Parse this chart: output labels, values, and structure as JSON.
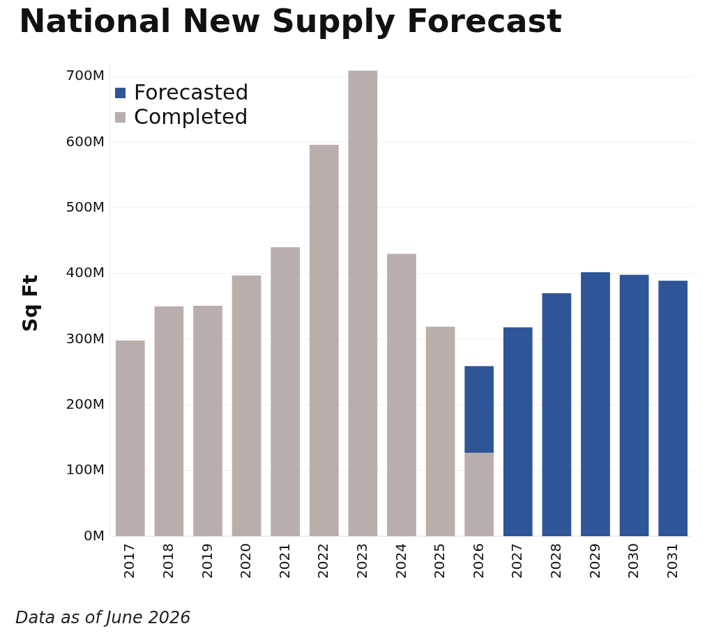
{
  "chart_data": {
    "type": "bar",
    "title": "National New Supply Forecast",
    "ylabel": "Sq Ft",
    "categories": [
      "2017",
      "2018",
      "2019",
      "2020",
      "2021",
      "2022",
      "2023",
      "2024",
      "2025",
      "2026",
      "2027",
      "2028",
      "2029",
      "2030",
      "2031"
    ],
    "series": [
      {
        "name": "Completed",
        "color": "#b8afac",
        "values": [
          298,
          350,
          351,
          397,
          440,
          596,
          709,
          430,
          319,
          127,
          null,
          null,
          null,
          null,
          null
        ]
      },
      {
        "name": "Forecasted",
        "color": "#2e5597",
        "values": [
          null,
          null,
          null,
          null,
          null,
          null,
          null,
          null,
          null,
          132,
          318,
          370,
          402,
          398,
          389
        ]
      }
    ],
    "stacked": true,
    "ylim": [
      0,
      720
    ],
    "yticks": [
      {
        "value": 0,
        "label": "0M"
      },
      {
        "value": 100,
        "label": "100M"
      },
      {
        "value": 200,
        "label": "200M"
      },
      {
        "value": 300,
        "label": "300M"
      },
      {
        "value": 400,
        "label": "400M"
      },
      {
        "value": 500,
        "label": "500M"
      },
      {
        "value": 600,
        "label": "600M"
      },
      {
        "value": 700,
        "label": "700M"
      }
    ],
    "grid": "y",
    "legend": "top left",
    "annotations": [
      "Data as of June 2026"
    ]
  }
}
